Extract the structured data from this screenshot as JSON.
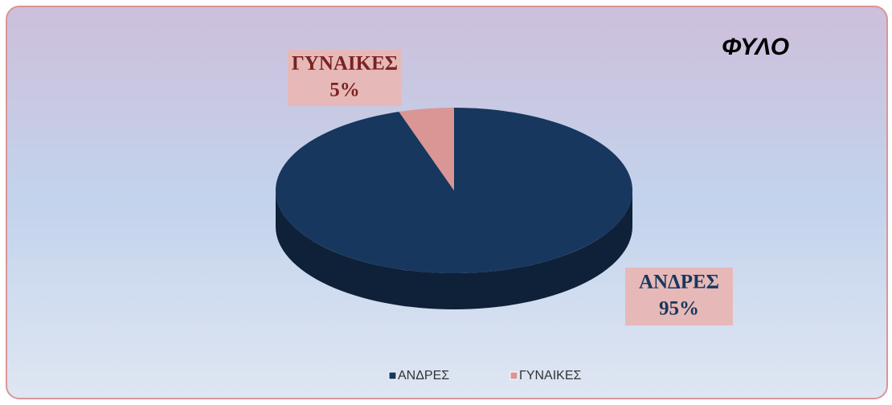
{
  "chart_data": {
    "type": "pie",
    "title": "ΦΥΛΟ",
    "categories": [
      "ΑΝΔΡΕΣ",
      "ΓΥΝΑΙΚΕΣ"
    ],
    "values": [
      95,
      5
    ],
    "value_labels": [
      "95%",
      "5%"
    ],
    "colors": [
      "#17375e",
      "#d99694"
    ],
    "legend": "bottom"
  }
}
